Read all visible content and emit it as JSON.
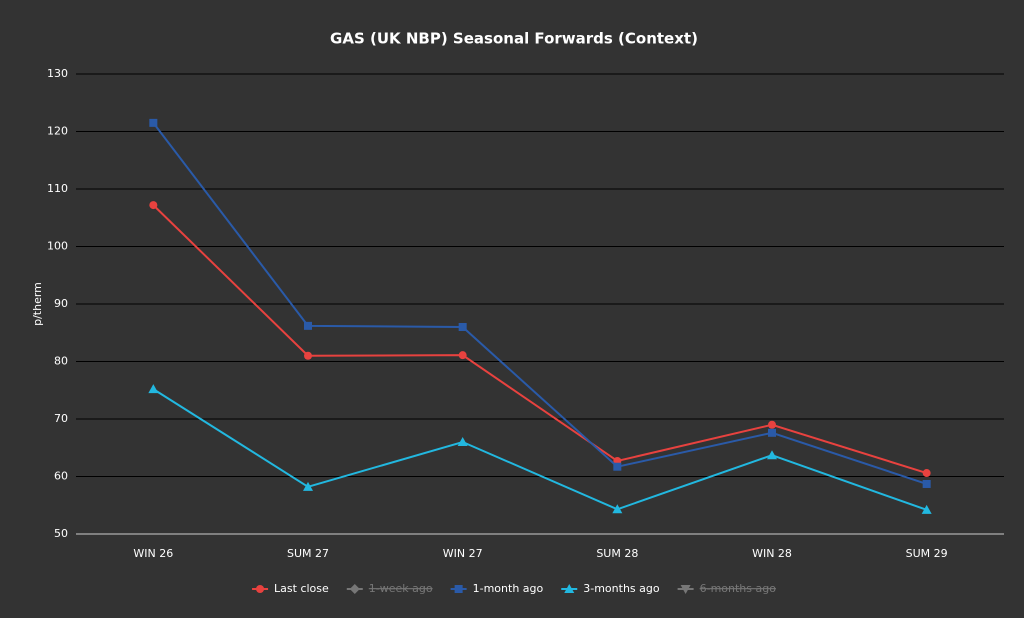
{
  "chart_data": {
    "type": "line",
    "title": "GAS (UK NBP) Seasonal Forwards (Context)",
    "y_label": "p/therm",
    "categories": [
      "WIN 26",
      "SUM 27",
      "WIN 27",
      "SUM 28",
      "WIN 28",
      "SUM 29"
    ],
    "series": [
      {
        "name": "Last close",
        "color": "#e8423f",
        "marker": "circle",
        "hidden": false,
        "values": [
          107.2,
          81.0,
          81.1,
          62.7,
          69.0,
          60.6
        ]
      },
      {
        "name": "1-week ago",
        "color": "#8a8a8a",
        "marker": "diamond",
        "hidden": true,
        "values": [
          null,
          null,
          null,
          null,
          null,
          null
        ]
      },
      {
        "name": "1-month ago",
        "color": "#2a5aa8",
        "marker": "square",
        "hidden": false,
        "values": [
          121.5,
          86.2,
          86.0,
          61.7,
          67.6,
          58.7
        ]
      },
      {
        "name": "3-months ago",
        "color": "#22b8e0",
        "marker": "triangle",
        "hidden": false,
        "values": [
          75.2,
          58.2,
          66.0,
          54.3,
          63.7,
          54.2
        ]
      },
      {
        "name": "6-months ago",
        "color": "#8a8a8a",
        "marker": "triangle-down",
        "hidden": true,
        "values": [
          null,
          null,
          null,
          null,
          null,
          null
        ]
      }
    ],
    "ylim": [
      50,
      130
    ],
    "yticks": [
      50,
      60,
      70,
      80,
      90,
      100,
      110,
      120,
      130
    ],
    "grid": true,
    "legend": "bottom"
  }
}
